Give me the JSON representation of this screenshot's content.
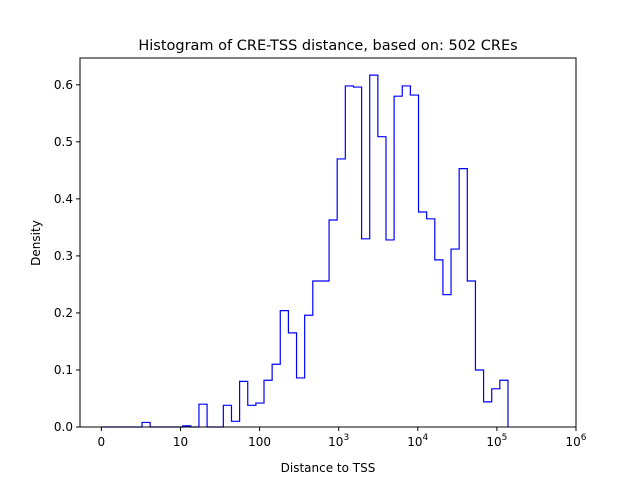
{
  "chart_data": {
    "type": "histogram-step",
    "title": "Histogram of CRE-TSS distance, based on: 502 CREs",
    "xlabel": "Distance to TSS",
    "ylabel": "Density",
    "x_scale": "log10(1+x)",
    "xlim": [
      -0.27,
      6.0
    ],
    "ylim": [
      0,
      0.647
    ],
    "bin_start": 0,
    "bin_width": 0.1028,
    "values": [
      0,
      0,
      0,
      0,
      0,
      0.008,
      0,
      0,
      0,
      0,
      0.002,
      0,
      0.04,
      0,
      0,
      0.038,
      0.01,
      0.08,
      0.038,
      0.042,
      0.082,
      0.11,
      0.204,
      0.165,
      0.086,
      0.196,
      0.256,
      0.256,
      0.363,
      0.47,
      0.598,
      0.596,
      0.33,
      0.617,
      0.509,
      0.328,
      0.58,
      0.598,
      0.582,
      0.377,
      0.365,
      0.293,
      0.232,
      0.312,
      0.453,
      0.256,
      0.1,
      0.044,
      0.067,
      0.082
    ],
    "line_color": "#0000ff",
    "x_ticks": [
      {
        "pos": 0,
        "base": "0",
        "exp": ""
      },
      {
        "pos": 1,
        "base": "10",
        "exp": ""
      },
      {
        "pos": 2,
        "base": "100",
        "exp": ""
      },
      {
        "pos": 3,
        "base": "10",
        "exp": "3"
      },
      {
        "pos": 4,
        "base": "10",
        "exp": "4"
      },
      {
        "pos": 5,
        "base": "10",
        "exp": "5"
      },
      {
        "pos": 6,
        "base": "10",
        "exp": "6"
      }
    ],
    "y_ticks": [
      {
        "value": 0,
        "label": "0.0"
      },
      {
        "value": 0.1,
        "label": "0.1"
      },
      {
        "value": 0.2,
        "label": "0.2"
      },
      {
        "value": 0.3,
        "label": "0.3"
      },
      {
        "value": 0.4,
        "label": "0.4"
      },
      {
        "value": 0.5,
        "label": "0.5"
      },
      {
        "value": 0.6,
        "label": "0.6"
      }
    ],
    "grid": false
  }
}
